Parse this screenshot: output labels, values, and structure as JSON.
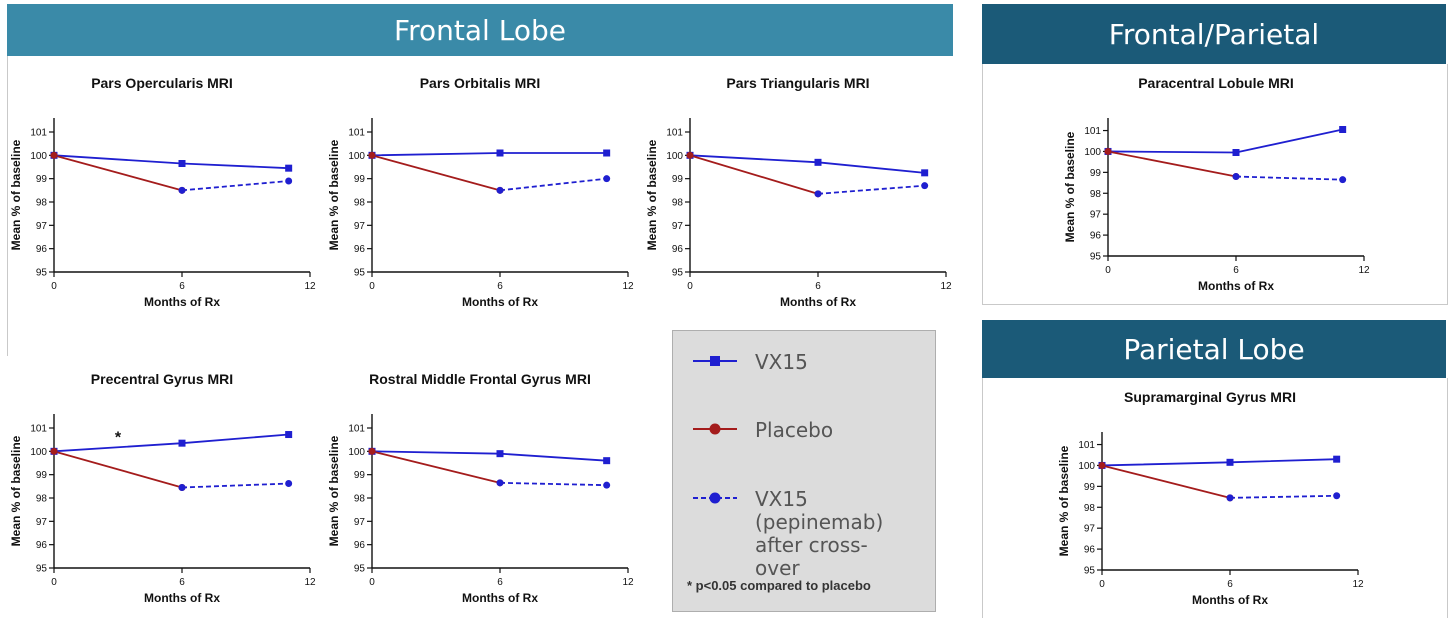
{
  "sections": {
    "frontal": "Frontal Lobe",
    "frontal_parietal": "Frontal/Parietal",
    "parietal": "Parietal Lobe"
  },
  "colors": {
    "vx15": "#1f1fd0",
    "placebo": "#a41c1c",
    "crossover": "#1f1fd0"
  },
  "legend": {
    "items": [
      {
        "label": "VX15",
        "style": "solid-square"
      },
      {
        "label": "Placebo",
        "style": "solid-circle"
      },
      {
        "label": "VX15 (pepinemab) after cross-over",
        "style": "dashed-circle"
      }
    ],
    "note": "* p<0.05 compared to placebo"
  },
  "chart_data": [
    {
      "type": "line",
      "title": "Pars Opercularis  MRI",
      "xlabel": "Months of Rx",
      "ylabel": "Mean % of baseline",
      "xlim": [
        0,
        12
      ],
      "ylim": [
        95,
        101.6
      ],
      "xticks": [
        0,
        6,
        12
      ],
      "yticks": [
        95,
        96,
        97,
        98,
        99,
        100,
        101
      ],
      "series": [
        {
          "name": "VX15",
          "points": [
            [
              0,
              100
            ],
            [
              6,
              99.65
            ],
            [
              11,
              99.45
            ]
          ]
        },
        {
          "name": "Placebo",
          "points": [
            [
              0,
              100
            ],
            [
              6,
              98.5
            ]
          ]
        },
        {
          "name": "VX15 (pepinemab) after cross-over",
          "points": [
            [
              6,
              98.5
            ],
            [
              11,
              98.9
            ]
          ]
        }
      ]
    },
    {
      "type": "line",
      "title": "Pars Orbitalis  MRI",
      "xlabel": "Months of Rx",
      "ylabel": "Mean % of baseline",
      "xlim": [
        0,
        12
      ],
      "ylim": [
        95,
        101.6
      ],
      "xticks": [
        0,
        6,
        12
      ],
      "yticks": [
        95,
        96,
        97,
        98,
        99,
        100,
        101
      ],
      "series": [
        {
          "name": "VX15",
          "points": [
            [
              0,
              100
            ],
            [
              6,
              100.1
            ],
            [
              11,
              100.1
            ]
          ]
        },
        {
          "name": "Placebo",
          "points": [
            [
              0,
              100
            ],
            [
              6,
              98.5
            ]
          ]
        },
        {
          "name": "VX15 (pepinemab) after cross-over",
          "points": [
            [
              6,
              98.5
            ],
            [
              11,
              99.0
            ]
          ]
        }
      ]
    },
    {
      "type": "line",
      "title": "Pars Triangularis  MRI",
      "xlabel": "Months of Rx",
      "ylabel": "Mean % of baseline",
      "xlim": [
        0,
        12
      ],
      "ylim": [
        95,
        101.6
      ],
      "xticks": [
        0,
        6,
        12
      ],
      "yticks": [
        95,
        96,
        97,
        98,
        99,
        100,
        101
      ],
      "series": [
        {
          "name": "VX15",
          "points": [
            [
              0,
              100
            ],
            [
              6,
              99.7
            ],
            [
              11,
              99.25
            ]
          ]
        },
        {
          "name": "Placebo",
          "points": [
            [
              0,
              100
            ],
            [
              6,
              98.35
            ]
          ]
        },
        {
          "name": "VX15 (pepinemab) after cross-over",
          "points": [
            [
              6,
              98.35
            ],
            [
              11,
              98.7
            ]
          ]
        }
      ]
    },
    {
      "type": "line",
      "title": "Precentral Gyrus MRI",
      "xlabel": "Months of Rx",
      "ylabel": "Mean % of baseline",
      "xlim": [
        0,
        12
      ],
      "ylim": [
        95,
        101.6
      ],
      "xticks": [
        0,
        6,
        12
      ],
      "yticks": [
        95,
        96,
        97,
        98,
        99,
        100,
        101
      ],
      "annotation": {
        "text": "*",
        "x": 3,
        "y": 100.6
      },
      "series": [
        {
          "name": "VX15",
          "points": [
            [
              0,
              100
            ],
            [
              6,
              100.35
            ],
            [
              11,
              100.72
            ]
          ]
        },
        {
          "name": "Placebo",
          "points": [
            [
              0,
              100
            ],
            [
              6,
              98.45
            ]
          ]
        },
        {
          "name": "VX15 (pepinemab) after cross-over",
          "points": [
            [
              6,
              98.45
            ],
            [
              11,
              98.62
            ]
          ]
        }
      ]
    },
    {
      "type": "line",
      "title": "Rostral Middle Frontal Gyrus MRI",
      "xlabel": "Months of Rx",
      "ylabel": "Mean % of baseline",
      "xlim": [
        0,
        12
      ],
      "ylim": [
        95,
        101.6
      ],
      "xticks": [
        0,
        6,
        12
      ],
      "yticks": [
        95,
        96,
        97,
        98,
        99,
        100,
        101
      ],
      "series": [
        {
          "name": "VX15",
          "points": [
            [
              0,
              100
            ],
            [
              6,
              99.9
            ],
            [
              11,
              99.6
            ]
          ]
        },
        {
          "name": "Placebo",
          "points": [
            [
              0,
              100
            ],
            [
              6,
              98.65
            ]
          ]
        },
        {
          "name": "VX15 (pepinemab) after cross-over",
          "points": [
            [
              6,
              98.65
            ],
            [
              11,
              98.55
            ]
          ]
        }
      ]
    },
    {
      "type": "line",
      "title": "Paracentral Lobule  MRI",
      "xlabel": "Months of Rx",
      "ylabel": "Mean % of baseline",
      "xlim": [
        0,
        12
      ],
      "ylim": [
        95,
        101.6
      ],
      "xticks": [
        0,
        6,
        12
      ],
      "yticks": [
        95,
        96,
        97,
        98,
        99,
        100,
        101
      ],
      "series": [
        {
          "name": "VX15",
          "points": [
            [
              0,
              100
            ],
            [
              6,
              99.95
            ],
            [
              11,
              101.05
            ]
          ]
        },
        {
          "name": "Placebo",
          "points": [
            [
              0,
              100
            ],
            [
              6,
              98.8
            ]
          ]
        },
        {
          "name": "VX15 (pepinemab) after cross-over",
          "points": [
            [
              6,
              98.8
            ],
            [
              11,
              98.65
            ]
          ]
        }
      ]
    },
    {
      "type": "line",
      "title": "Supramarginal Gyrus MRI",
      "xlabel": "Months of Rx",
      "ylabel": "Mean % of baseline",
      "xlim": [
        0,
        12
      ],
      "ylim": [
        95,
        101.6
      ],
      "xticks": [
        0,
        6,
        12
      ],
      "yticks": [
        95,
        96,
        97,
        98,
        99,
        100,
        101
      ],
      "series": [
        {
          "name": "VX15",
          "points": [
            [
              0,
              100
            ],
            [
              6,
              100.15
            ],
            [
              11,
              100.3
            ]
          ]
        },
        {
          "name": "Placebo",
          "points": [
            [
              0,
              100
            ],
            [
              6,
              98.45
            ]
          ]
        },
        {
          "name": "VX15 (pepinemab) after cross-over",
          "points": [
            [
              6,
              98.45
            ],
            [
              11,
              98.55
            ]
          ]
        }
      ]
    }
  ]
}
